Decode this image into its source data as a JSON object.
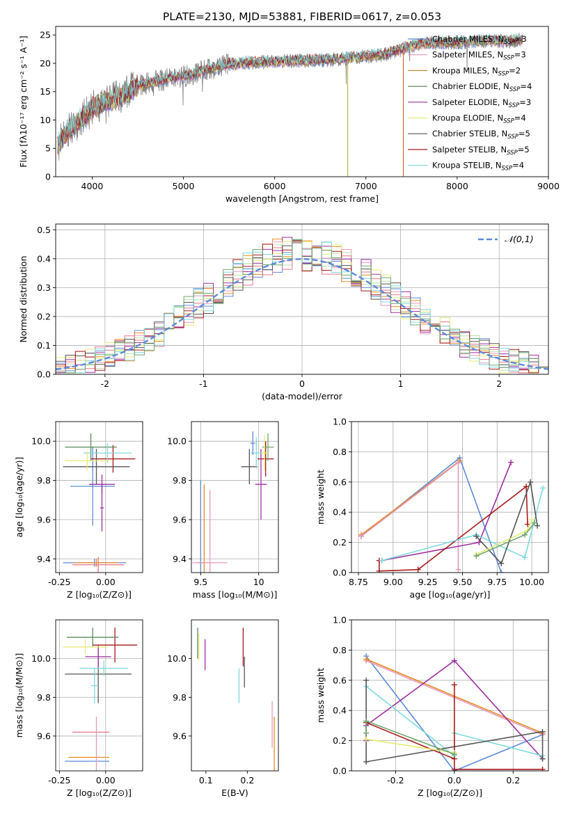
{
  "figure_title": "PLATE=2130, MJD=53881, FIBERID=0617, z=0.053",
  "model_colors": [
    "#5b8bd9",
    "#e8891f",
    "#e19abf",
    "#b8e2a8",
    "#e8768b",
    "#9d2f9f",
    "#e6eb76",
    "#555555",
    "#a81a1a",
    "#7fd9dd",
    "#6fa86f"
  ],
  "legend_series": [
    {
      "name": "Chabrier MILES",
      "nssp": "3",
      "color": "#5b8bd9"
    },
    {
      "name": "Salpeter MILES",
      "nssp": "3",
      "color": "#e19abf"
    },
    {
      "name": "Kroupa MILES",
      "nssp": "2",
      "color": "#c28a2a"
    },
    {
      "name": "Chabrier ELODIE",
      "nssp": "4",
      "color": "#5a8a5a"
    },
    {
      "name": "Salpeter ELODIE",
      "nssp": "3",
      "color": "#9d2f9f"
    },
    {
      "name": "Kroupa ELODIE",
      "nssp": "4",
      "color": "#e6eb76"
    },
    {
      "name": "Chabrier STELIB",
      "nssp": "5",
      "color": "#555555"
    },
    {
      "name": "Salpeter STELIB",
      "nssp": "5",
      "color": "#a81a1a"
    },
    {
      "name": "Kroupa STELIB",
      "nssp": "4",
      "color": "#7fd9dd"
    }
  ],
  "chart_data": [
    {
      "id": "spectrum",
      "type": "line",
      "xlabel": "wavelength [Angstrom, rest frame]",
      "ylabel": "Flux [fλ10⁻¹⁷ erg cm⁻² s⁻¹ A⁻¹]",
      "xlim": [
        3600,
        9000
      ],
      "ylim": [
        0,
        26.5
      ],
      "xticks": [
        4000,
        5000,
        6000,
        7000,
        8000,
        9000
      ],
      "yticks": [
        0,
        5,
        10,
        15,
        20,
        25
      ],
      "continuum": [
        [
          3620,
          5.5
        ],
        [
          3700,
          7.5
        ],
        [
          3800,
          9.0
        ],
        [
          3900,
          10.5
        ],
        [
          4000,
          12.0
        ],
        [
          4100,
          13.0
        ],
        [
          4200,
          13.5
        ],
        [
          4300,
          14.0
        ],
        [
          4400,
          15.0
        ],
        [
          4500,
          16.0
        ],
        [
          4700,
          16.8
        ],
        [
          4900,
          17.5
        ],
        [
          5100,
          18.0
        ],
        [
          5300,
          19.0
        ],
        [
          5500,
          19.8
        ],
        [
          5800,
          20.2
        ],
        [
          6000,
          20.3
        ],
        [
          6300,
          20.5
        ],
        [
          6600,
          20.6
        ],
        [
          7000,
          21.2
        ],
        [
          7200,
          21.5
        ],
        [
          7400,
          22.5
        ],
        [
          7600,
          23.5
        ],
        [
          8000,
          23.6
        ],
        [
          8300,
          24.0
        ],
        [
          8600,
          23.9
        ],
        [
          8700,
          24.2
        ]
      ],
      "data_color": "#808080"
    },
    {
      "id": "residuals",
      "type": "histogram",
      "xlabel": "(data-model)/error",
      "ylabel": "Normed distribution",
      "xlim": [
        -2.5,
        2.5
      ],
      "ylim": [
        0,
        0.52
      ],
      "xticks": [
        -2,
        -1,
        0,
        1,
        2
      ],
      "yticks": [
        0.0,
        0.1,
        0.2,
        0.3,
        0.4,
        0.5
      ],
      "legend": "𝒩(0,1)",
      "normal_mean": 0,
      "normal_sigma": 1,
      "normal_color": "#5b8bd9"
    },
    {
      "id": "age_vs_Z",
      "type": "errorbar",
      "xlabel": "Z [log₁₀(Z/Z⊙)]",
      "ylabel": "age  [log₁₀(age/yr)]",
      "xlim": [
        -0.27,
        0.2
      ],
      "ylim": [
        9.33,
        10.1
      ],
      "xticks": [
        -0.25,
        0.0
      ],
      "yticks": [
        9.4,
        9.6,
        9.8,
        10.0
      ],
      "points": [
        {
          "x": -0.06,
          "y": 9.38,
          "xerr": 0.17,
          "yerr": 0.02,
          "c": "#5b8bd9"
        },
        {
          "x": -0.05,
          "y": 9.38,
          "xerr": 0.12,
          "yerr": 0.02,
          "c": "#e8891f"
        },
        {
          "x": -0.04,
          "y": 9.37,
          "xerr": 0.14,
          "yerr": 0.04,
          "c": "#e8768b"
        },
        {
          "x": -0.07,
          "y": 9.77,
          "xerr": 0.12,
          "yerr": 0.2,
          "c": "#5b8bd9"
        },
        {
          "x": 0.04,
          "y": 9.91,
          "xerr": 0.12,
          "yerr": 0.07,
          "c": "#a81a1a"
        },
        {
          "x": -0.05,
          "y": 9.87,
          "xerr": 0.18,
          "yerr": 0.09,
          "c": "#555555"
        },
        {
          "x": -0.02,
          "y": 9.78,
          "xerr": 0.07,
          "yerr": 0.05,
          "c": "#9d2f9f"
        },
        {
          "x": -0.08,
          "y": 9.97,
          "xerr": 0.14,
          "yerr": 0.07,
          "c": "#5a8a5a"
        },
        {
          "x": 0.01,
          "y": 9.94,
          "xerr": 0.13,
          "yerr": 0.05,
          "c": "#7fd9dd"
        },
        {
          "x": -0.1,
          "y": 9.9,
          "xerr": 0.12,
          "yerr": 0.05,
          "c": "#e6eb76"
        },
        {
          "x": -0.02,
          "y": 9.66,
          "xerr": 0.01,
          "yerr": 0.12,
          "c": "#9d2f9f"
        }
      ]
    },
    {
      "id": "age_vs_mass",
      "type": "errorbar",
      "xlabel": "mass [log₁₀(M/M⊙)]",
      "ylabel": "",
      "xlim": [
        9.42,
        10.17
      ],
      "ylim": [
        9.33,
        10.1
      ],
      "xticks": [
        9.5,
        10.0
      ],
      "yticks": [
        9.4,
        9.6,
        9.8,
        10.0
      ],
      "points": [
        {
          "x": 9.5,
          "y": 9.38,
          "xerr": 0.03,
          "yerr": 0.42,
          "c": "#5b8bd9"
        },
        {
          "x": 9.53,
          "y": 9.38,
          "xerr": 0.05,
          "yerr": 0.4,
          "c": "#e8891f"
        },
        {
          "x": 9.58,
          "y": 9.38,
          "xerr": 0.15,
          "yerr": 0.37,
          "c": "#e19abf"
        },
        {
          "x": 9.92,
          "y": 9.87,
          "xerr": 0.07,
          "yerr": 0.09,
          "c": "#555555"
        },
        {
          "x": 10.06,
          "y": 9.91,
          "xerr": 0.07,
          "yerr": 0.09,
          "c": "#a81a1a"
        },
        {
          "x": 10.02,
          "y": 9.78,
          "xerr": 0.05,
          "yerr": 0.18,
          "c": "#9d2f9f"
        },
        {
          "x": 9.98,
          "y": 9.94,
          "xerr": 0.05,
          "yerr": 0.08,
          "c": "#7fd9dd"
        },
        {
          "x": 10.08,
          "y": 9.97,
          "xerr": 0.05,
          "yerr": 0.07,
          "c": "#6fa86f"
        },
        {
          "x": 10.05,
          "y": 9.94,
          "xerr": 0.03,
          "yerr": 0.09,
          "c": "#e6eb76"
        },
        {
          "x": 9.95,
          "y": 9.99,
          "xerr": 0.02,
          "yerr": 0.06,
          "c": "#5b8bd9"
        }
      ]
    },
    {
      "id": "weight_vs_age",
      "type": "line",
      "xlabel": "age  [log₁₀(age/yr)]",
      "ylabel": "mass weight",
      "xlim": [
        8.7,
        10.12
      ],
      "ylim": [
        0,
        1.0
      ],
      "xticks": [
        8.75,
        9.0,
        9.25,
        9.5,
        9.75,
        10.0
      ],
      "yticks": [
        0.0,
        0.2,
        0.4,
        0.6,
        0.8,
        1.0
      ],
      "series": [
        {
          "c": "#5b8bd9",
          "x": [
            8.77,
            9.48,
            9.78
          ],
          "y": [
            0.24,
            0.76,
            0.0
          ]
        },
        {
          "c": "#e8891f",
          "x": [
            8.77,
            9.48
          ],
          "y": [
            0.25,
            0.74
          ]
        },
        {
          "c": "#e19abf",
          "x": [
            8.77,
            9.47,
            9.47
          ],
          "y": [
            0.24,
            0.73,
            0.02
          ]
        },
        {
          "c": "#9d2f9f",
          "x": [
            8.92,
            9.62,
            9.85
          ],
          "y": [
            0.08,
            0.2,
            0.73
          ]
        },
        {
          "c": "#a81a1a",
          "x": [
            8.9,
            8.9,
            9.18,
            9.96,
            9.97
          ],
          "y": [
            0.08,
            0.01,
            0.02,
            0.57,
            0.32
          ]
        },
        {
          "c": "#7fd9dd",
          "x": [
            8.92,
            9.6,
            9.95,
            10.08
          ],
          "y": [
            0.08,
            0.25,
            0.1,
            0.56
          ]
        },
        {
          "c": "#555555",
          "x": [
            9.6,
            9.78,
            9.99,
            10.04
          ],
          "y": [
            0.24,
            0.06,
            0.6,
            0.31
          ]
        },
        {
          "c": "#e6eb76",
          "x": [
            9.6,
            9.97,
            10.0
          ],
          "y": [
            0.12,
            0.28,
            0.35
          ]
        },
        {
          "c": "#6fa86f",
          "x": [
            9.6,
            9.95,
            10.02
          ],
          "y": [
            0.11,
            0.25,
            0.33
          ]
        }
      ]
    },
    {
      "id": "mass_vs_Z",
      "type": "errorbar",
      "xlabel": "Z [log₁₀(Z/Z⊙)]",
      "ylabel": "mass [log₁₀(M/M⊙)]",
      "xlim": [
        -0.27,
        0.2
      ],
      "ylim": [
        9.42,
        10.2
      ],
      "xticks": [
        -0.25,
        0.0
      ],
      "yticks": [
        9.6,
        9.8,
        10.0
      ],
      "points": [
        {
          "x": -0.1,
          "y": 9.47,
          "xerr": 0.12,
          "yerr": 0.0,
          "c": "#5b8bd9"
        },
        {
          "x": -0.09,
          "y": 9.49,
          "xerr": 0.11,
          "yerr": 0.0,
          "c": "#e8891f"
        },
        {
          "x": -0.08,
          "y": 9.62,
          "xerr": 0.1,
          "yerr": 0.0,
          "c": "#e8768b"
        },
        {
          "x": -0.05,
          "y": 9.56,
          "xerr": 0.0,
          "yerr": 0.14,
          "c": "#e19abf"
        },
        {
          "x": -0.04,
          "y": 9.92,
          "xerr": 0.18,
          "yerr": 0.15,
          "c": "#555555"
        },
        {
          "x": 0.05,
          "y": 10.07,
          "xerr": 0.12,
          "yerr": 0.09,
          "c": "#a81a1a"
        },
        {
          "x": -0.04,
          "y": 10.01,
          "xerr": 0.07,
          "yerr": 0.06,
          "c": "#9d2f9f"
        },
        {
          "x": -0.07,
          "y": 10.11,
          "xerr": 0.14,
          "yerr": 0.05,
          "c": "#5a8a5a"
        },
        {
          "x": -0.01,
          "y": 9.95,
          "xerr": 0.13,
          "yerr": 0.04,
          "c": "#7fd9dd"
        },
        {
          "x": -0.11,
          "y": 10.06,
          "xerr": 0.12,
          "yerr": 0.04,
          "c": "#e6eb76"
        },
        {
          "x": -0.06,
          "y": 9.86,
          "xerr": 0.02,
          "yerr": 0.09,
          "c": "#7fd9dd"
        }
      ]
    },
    {
      "id": "mass_vs_ebv",
      "type": "errorbar",
      "xlabel": "E(B-V)",
      "ylabel": "",
      "xlim": [
        0.065,
        0.275
      ],
      "ylim": [
        9.42,
        10.2
      ],
      "xticks": [
        0.1,
        0.2
      ],
      "yticks": [
        9.6,
        9.8,
        10.0
      ],
      "points": [
        {
          "x": 0.08,
          "y": 10.08,
          "xerr": 0.0,
          "yerr": 0.08,
          "c": "#5a8a5a"
        },
        {
          "x": 0.083,
          "y": 10.06,
          "xerr": 0.0,
          "yerr": 0.07,
          "c": "#e6eb76"
        },
        {
          "x": 0.098,
          "y": 10.02,
          "xerr": 0.0,
          "yerr": 0.08,
          "c": "#9d2f9f"
        },
        {
          "x": 0.18,
          "y": 9.86,
          "xerr": 0.0,
          "yerr": 0.09,
          "c": "#7fd9dd"
        },
        {
          "x": 0.19,
          "y": 10.06,
          "xerr": 0.0,
          "yerr": 0.1,
          "c": "#a81a1a"
        },
        {
          "x": 0.193,
          "y": 9.93,
          "xerr": 0.0,
          "yerr": 0.08,
          "c": "#555555"
        },
        {
          "x": 0.26,
          "y": 9.66,
          "xerr": 0.0,
          "yerr": 0.12,
          "c": "#e19abf"
        },
        {
          "x": 0.265,
          "y": 9.56,
          "xerr": 0.0,
          "yerr": 0.14,
          "c": "#e8891f"
        }
      ]
    },
    {
      "id": "weight_vs_Z",
      "type": "line",
      "xlabel": "Z [log₁₀(Z/Z⊙)]",
      "ylabel": "mass weight",
      "xlim": [
        -0.35,
        0.32
      ],
      "ylim": [
        0,
        1.0
      ],
      "xticks": [
        -0.2,
        0.0,
        0.2
      ],
      "yticks": [
        0.0,
        0.2,
        0.4,
        0.6,
        0.8,
        1.0
      ],
      "series": [
        {
          "c": "#5b8bd9",
          "x": [
            -0.3,
            0.0,
            0.3
          ],
          "y": [
            0.76,
            0.0,
            0.24
          ]
        },
        {
          "c": "#e19abf",
          "x": [
            -0.3,
            0.3
          ],
          "y": [
            0.73,
            0.24
          ]
        },
        {
          "c": "#e8891f",
          "x": [
            -0.3,
            0.3
          ],
          "y": [
            0.74,
            0.25
          ]
        },
        {
          "c": "#9d2f9f",
          "x": [
            -0.3,
            -0.3,
            0.0,
            0.3
          ],
          "y": [
            0.2,
            0.3,
            0.73,
            0.08
          ]
        },
        {
          "c": "#7fd9dd",
          "x": [
            -0.3,
            0.0,
            0.0,
            0.3
          ],
          "y": [
            0.56,
            0.1,
            0.25,
            0.1
          ]
        },
        {
          "c": "#555555",
          "x": [
            -0.3,
            -0.3,
            0.3,
            0.3
          ],
          "y": [
            0.6,
            0.06,
            0.26,
            0.08
          ]
        },
        {
          "c": "#a81a1a",
          "x": [
            -0.3,
            0.0,
            0.0,
            0.0,
            0.3
          ],
          "y": [
            0.32,
            0.08,
            0.57,
            0.01,
            0.01
          ]
        },
        {
          "c": "#e6eb76",
          "x": [
            -0.3,
            0.0
          ],
          "y": [
            0.21,
            0.12
          ]
        },
        {
          "c": "#6fa86f",
          "x": [
            -0.3,
            -0.3,
            0.0
          ],
          "y": [
            0.25,
            0.33,
            0.11
          ]
        }
      ]
    }
  ]
}
